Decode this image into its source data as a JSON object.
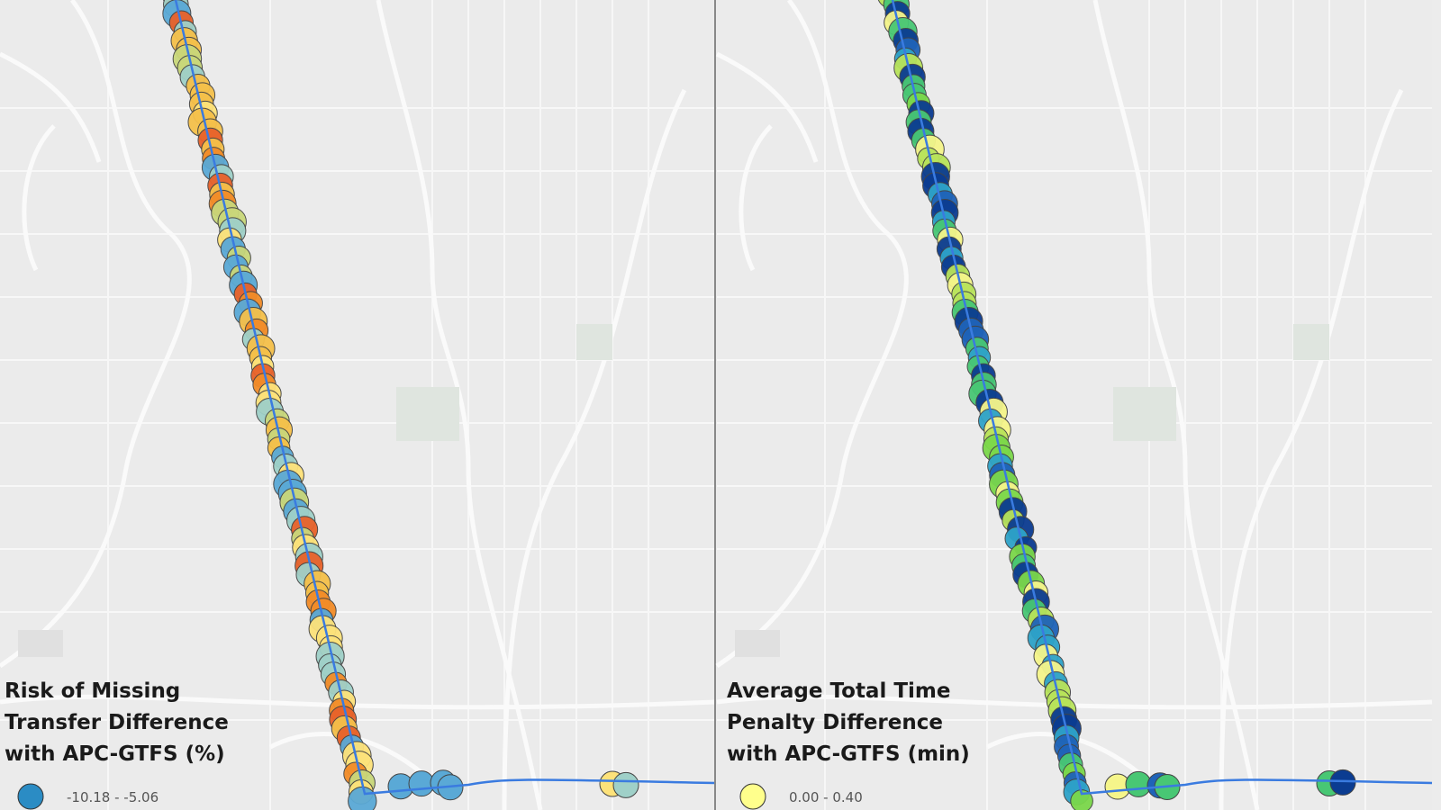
{
  "panels": [
    {
      "legend": {
        "title_lines": [
          "Risk of Missing",
          "Transfer Difference",
          "with APC-GTFS (%)"
        ],
        "items": [
          {
            "label": "-10.18 - -5.06",
            "color": "#2b8cc4"
          }
        ]
      }
    },
    {
      "legend": {
        "title_lines": [
          "Average Total Time",
          "Penalty Difference",
          "with APC-GTFS (min)"
        ],
        "items": [
          {
            "label": "0.00 - 0.40",
            "color": "#ffff8c"
          }
        ]
      }
    }
  ]
}
